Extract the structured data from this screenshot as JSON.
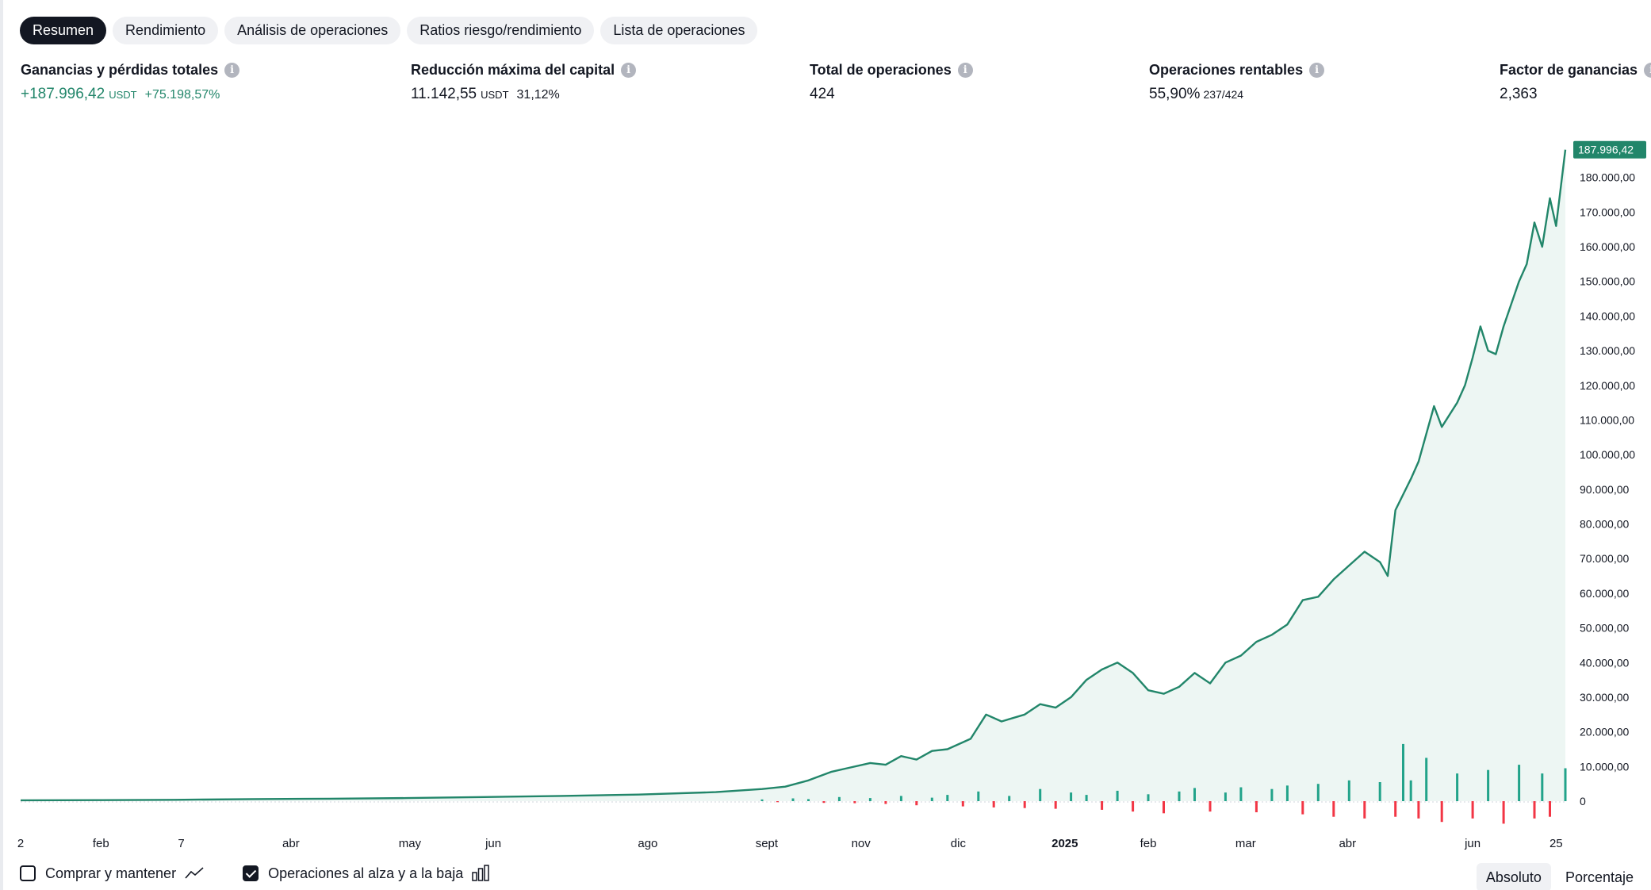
{
  "tabs": [
    {
      "label": "Resumen",
      "active": true
    },
    {
      "label": "Rendimiento",
      "active": false
    },
    {
      "label": "Análisis de operaciones",
      "active": false
    },
    {
      "label": "Ratios riesgo/rendimiento",
      "active": false
    },
    {
      "label": "Lista de operaciones",
      "active": false
    }
  ],
  "stats": {
    "pnl": {
      "label": "Ganancias y pérdidas totales",
      "value": "+187.996,42",
      "unit": "USDT",
      "percent": "+75.198,57%"
    },
    "drawdown": {
      "label": "Reducción máxima del capital",
      "value": "11.142,55",
      "unit": "USDT",
      "percent": "31,12%"
    },
    "trades": {
      "label": "Total de operaciones",
      "value": "424"
    },
    "profitable": {
      "label": "Operaciones rentables",
      "value": "55,90%",
      "ratio": "237/424"
    },
    "profit_factor": {
      "label": "Factor de ganancias",
      "value": "2,363"
    }
  },
  "colors": {
    "equity_line": "#22866a",
    "equity_fill": "#eaf4f1",
    "bar_up": "#22a38a",
    "bar_down": "#f23645",
    "text": "#131722"
  },
  "chart_data": {
    "type": "area",
    "title": "",
    "xlabel": "",
    "ylabel": "",
    "last_value_label": "187.996,42",
    "ylim": [
      0,
      190000
    ],
    "y_ticks": [
      0,
      10000,
      20000,
      30000,
      40000,
      50000,
      60000,
      70000,
      80000,
      90000,
      100000,
      110000,
      120000,
      130000,
      140000,
      150000,
      160000,
      170000,
      180000
    ],
    "y_tick_labels": [
      "0",
      "10.000,00",
      "20.000,00",
      "30.000,00",
      "40.000,00",
      "50.000,00",
      "60.000,00",
      "70.000,00",
      "80.000,00",
      "90.000,00",
      "100.000,00",
      "110.000,00",
      "120.000,00",
      "130.000,00",
      "140.000,00",
      "150.000,00",
      "160.000,00",
      "170.000,00",
      "180.000,00"
    ],
    "x_range": [
      0,
      100
    ],
    "x_ticks": [
      {
        "x": 0,
        "label": "2",
        "bold": false
      },
      {
        "x": 5.2,
        "label": "feb",
        "bold": false
      },
      {
        "x": 10.4,
        "label": "7",
        "bold": false
      },
      {
        "x": 17.5,
        "label": "abr",
        "bold": false
      },
      {
        "x": 25.2,
        "label": "may",
        "bold": false
      },
      {
        "x": 30.6,
        "label": "jun",
        "bold": false
      },
      {
        "x": 40.6,
        "label": "ago",
        "bold": false
      },
      {
        "x": 48.3,
        "label": "sept",
        "bold": false
      },
      {
        "x": 54.4,
        "label": "nov",
        "bold": false
      },
      {
        "x": 60.7,
        "label": "dic",
        "bold": false
      },
      {
        "x": 67.6,
        "label": "2025",
        "bold": true
      },
      {
        "x": 73.0,
        "label": "feb",
        "bold": false
      },
      {
        "x": 79.3,
        "label": "mar",
        "bold": false
      },
      {
        "x": 85.9,
        "label": "abr",
        "bold": false
      },
      {
        "x": 94.0,
        "label": "jun",
        "bold": false
      },
      {
        "x": 99.4,
        "label": "25",
        "bold": false
      }
    ],
    "series": [
      {
        "name": "Ganancias y pérdidas totales",
        "type": "line",
        "points": [
          [
            0,
            250
          ],
          [
            5,
            300
          ],
          [
            10,
            400
          ],
          [
            15,
            600
          ],
          [
            20,
            700
          ],
          [
            25,
            900
          ],
          [
            30,
            1200
          ],
          [
            35,
            1500
          ],
          [
            40,
            1900
          ],
          [
            45,
            2600
          ],
          [
            48,
            3500
          ],
          [
            49.5,
            4200
          ],
          [
            51,
            6000
          ],
          [
            52.5,
            8500
          ],
          [
            53.5,
            9500
          ],
          [
            55,
            11000
          ],
          [
            56,
            10500
          ],
          [
            57,
            13000
          ],
          [
            58,
            12000
          ],
          [
            59,
            14500
          ],
          [
            60,
            15000
          ],
          [
            61.5,
            18000
          ],
          [
            62.5,
            25000
          ],
          [
            63.5,
            23000
          ],
          [
            65,
            25000
          ],
          [
            66,
            28000
          ],
          [
            67,
            27000
          ],
          [
            68,
            30000
          ],
          [
            69,
            35000
          ],
          [
            70,
            38000
          ],
          [
            71,
            40000
          ],
          [
            72,
            37000
          ],
          [
            73,
            32000
          ],
          [
            74,
            31000
          ],
          [
            75,
            33000
          ],
          [
            76,
            37000
          ],
          [
            77,
            34000
          ],
          [
            78,
            40000
          ],
          [
            79,
            42000
          ],
          [
            80,
            46000
          ],
          [
            81,
            48000
          ],
          [
            82,
            51000
          ],
          [
            83,
            58000
          ],
          [
            84,
            59000
          ],
          [
            85,
            64000
          ],
          [
            86,
            68000
          ],
          [
            87,
            72000
          ],
          [
            88,
            69000
          ],
          [
            88.5,
            65000
          ],
          [
            89,
            84000
          ],
          [
            90,
            93000
          ],
          [
            90.5,
            98000
          ],
          [
            91.5,
            114000
          ],
          [
            92,
            108000
          ],
          [
            93,
            115000
          ],
          [
            93.5,
            120000
          ],
          [
            94,
            128000
          ],
          [
            94.5,
            137000
          ],
          [
            95,
            130000
          ],
          [
            95.5,
            129000
          ],
          [
            96,
            137000
          ],
          [
            97,
            150000
          ],
          [
            97.5,
            155000
          ],
          [
            98,
            167000
          ],
          [
            98.5,
            160000
          ],
          [
            99,
            174000
          ],
          [
            99.4,
            166000
          ],
          [
            100,
            188000
          ]
        ]
      },
      {
        "name": "Operaciones al alza y a la baja",
        "type": "bar",
        "bars": [
          [
            48,
            500
          ],
          [
            49,
            -300
          ],
          [
            50,
            800
          ],
          [
            51,
            600
          ],
          [
            52,
            -500
          ],
          [
            53,
            1200
          ],
          [
            54,
            -600
          ],
          [
            55,
            900
          ],
          [
            56,
            -800
          ],
          [
            57,
            1500
          ],
          [
            58,
            -1200
          ],
          [
            59,
            1000
          ],
          [
            60,
            1800
          ],
          [
            61,
            -1500
          ],
          [
            62,
            2800
          ],
          [
            63,
            -1800
          ],
          [
            64,
            1500
          ],
          [
            65,
            -2000
          ],
          [
            66,
            3500
          ],
          [
            67,
            -2200
          ],
          [
            68,
            2500
          ],
          [
            69,
            1800
          ],
          [
            70,
            -2500
          ],
          [
            71,
            3000
          ],
          [
            72,
            -3000
          ],
          [
            73,
            2000
          ],
          [
            74,
            -3500
          ],
          [
            75,
            2800
          ],
          [
            76,
            3800
          ],
          [
            77,
            -3000
          ],
          [
            78,
            2500
          ],
          [
            79,
            4000
          ],
          [
            80,
            -3200
          ],
          [
            81,
            3500
          ],
          [
            82,
            4500
          ],
          [
            83,
            -3800
          ],
          [
            84,
            5000
          ],
          [
            85,
            -4500
          ],
          [
            86,
            6000
          ],
          [
            87,
            -5000
          ],
          [
            88,
            5500
          ],
          [
            89,
            -4500
          ],
          [
            89.5,
            16500
          ],
          [
            90,
            6000
          ],
          [
            90.5,
            -5000
          ],
          [
            91,
            12500
          ],
          [
            92,
            -6000
          ],
          [
            93,
            8000
          ],
          [
            94,
            -5000
          ],
          [
            95,
            9000
          ],
          [
            96,
            -6500
          ],
          [
            97,
            10500
          ],
          [
            98,
            -5000
          ],
          [
            98.5,
            8000
          ],
          [
            99,
            -4500
          ],
          [
            100,
            9500
          ]
        ]
      }
    ]
  },
  "bottom": {
    "buy_hold_label": "Comprar y mantener",
    "buy_hold_icon": "line-chart-icon",
    "buy_hold_checked": false,
    "trades_label": "Operaciones al alza y a la baja",
    "trades_icon": "bar-chart-icon",
    "trades_checked": true,
    "absolute_label": "Absoluto",
    "percent_label": "Porcentaje"
  }
}
